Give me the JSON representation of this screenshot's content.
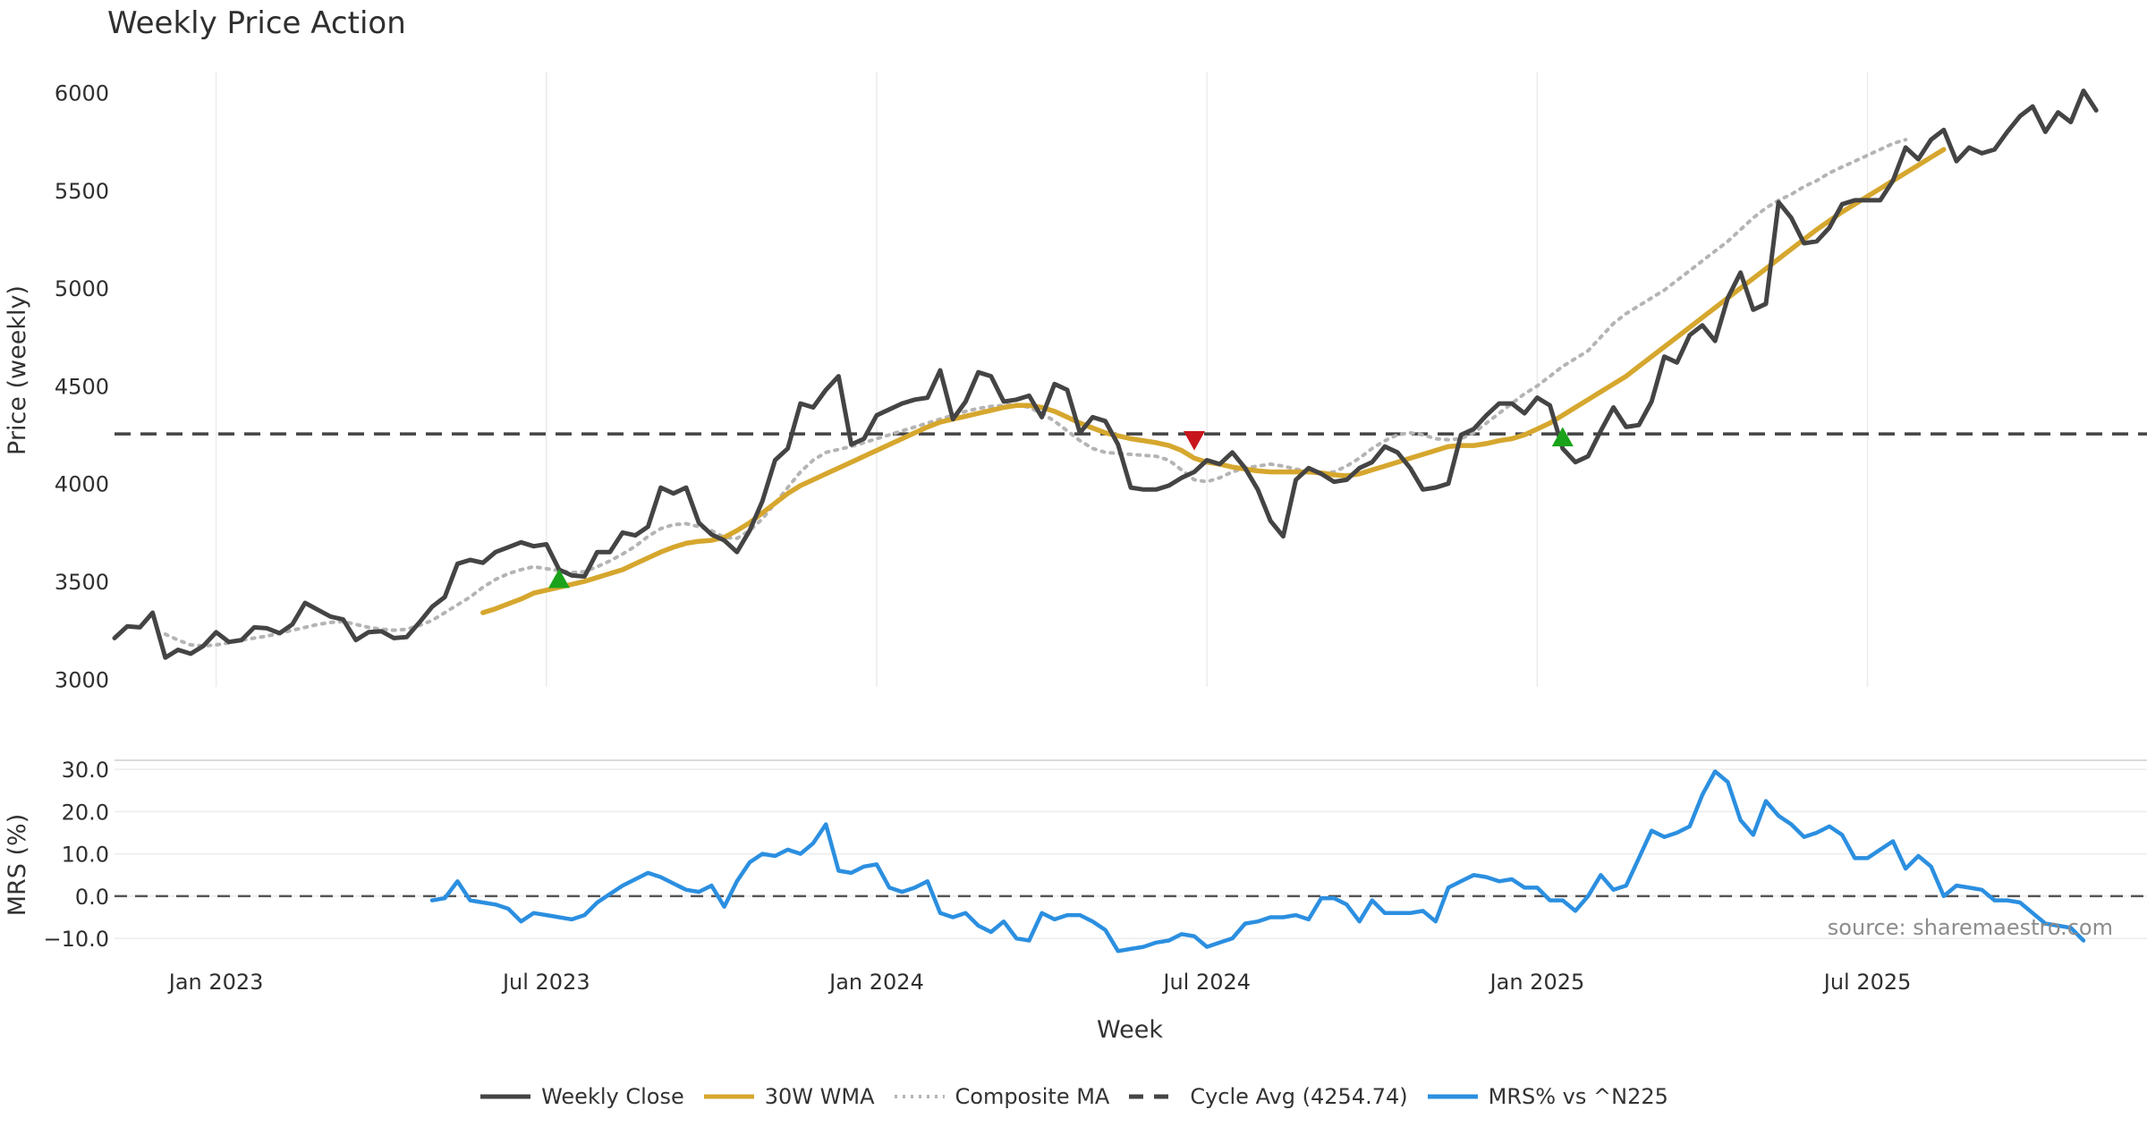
{
  "chart_data": {
    "type": "line",
    "title": "Weekly Price Action",
    "xlabel": "Week",
    "x_ticks": [
      "Jan 2023",
      "Jul 2023",
      "Jan 2024",
      "Jul 2024",
      "Jan 2025",
      "Jul 2025"
    ],
    "x_tick_weeks": [
      8,
      34,
      60,
      86,
      112,
      138
    ],
    "grid": true,
    "source": "source: sharemaestro.com",
    "price_panel": {
      "ylabel": "Price (weekly)",
      "ylim": [
        2960,
        6200
      ],
      "y_ticks": [
        3000,
        3500,
        4000,
        4500,
        5000,
        5500,
        6000
      ],
      "cycle_average": 4254.74,
      "series": [
        {
          "name": "Weekly Close",
          "color": "#444444",
          "start_week": 0,
          "values": [
            3210,
            3270,
            3265,
            3340,
            3110,
            3150,
            3130,
            3170,
            3240,
            3190,
            3200,
            3265,
            3260,
            3235,
            3280,
            3390,
            3355,
            3320,
            3305,
            3200,
            3240,
            3245,
            3210,
            3215,
            3290,
            3370,
            3420,
            3590,
            3610,
            3595,
            3650,
            3675,
            3700,
            3680,
            3690,
            3560,
            3530,
            3525,
            3650,
            3650,
            3750,
            3735,
            3780,
            3980,
            3950,
            3980,
            3800,
            3740,
            3710,
            3650,
            3760,
            3910,
            4120,
            4180,
            4410,
            4390,
            4480,
            4550,
            4200,
            4230,
            4350,
            4380,
            4410,
            4430,
            4440,
            4580,
            4330,
            4420,
            4570,
            4550,
            4420,
            4430,
            4450,
            4340,
            4510,
            4480,
            4260,
            4340,
            4320,
            4200,
            3980,
            3970,
            3970,
            3990,
            4030,
            4060,
            4120,
            4100,
            4160,
            4080,
            3970,
            3810,
            3730,
            4020,
            4080,
            4050,
            4010,
            4020,
            4080,
            4110,
            4190,
            4160,
            4080,
            3970,
            3980,
            4000,
            4250,
            4280,
            4350,
            4410,
            4410,
            4360,
            4440,
            4400,
            4180,
            4110,
            4140,
            4270,
            4390,
            4290,
            4300,
            4420,
            4650,
            4620,
            4760,
            4810,
            4730,
            4950,
            5080,
            4890,
            4920,
            5440,
            5360,
            5230,
            5240,
            5310,
            5430,
            5450,
            5450,
            5450,
            5550,
            5720,
            5660,
            5760,
            5810,
            5650,
            5720,
            5690,
            5710,
            5800,
            5880,
            5930,
            5800,
            5900,
            5850,
            6010,
            5910
          ]
        },
        {
          "name": "30W WMA",
          "color": "#d6a72e",
          "start_week": 29,
          "values": [
            3340,
            3360,
            3385,
            3410,
            3440,
            3455,
            3470,
            3485,
            3500,
            3520,
            3540,
            3560,
            3590,
            3620,
            3650,
            3675,
            3695,
            3705,
            3710,
            3725,
            3760,
            3800,
            3850,
            3900,
            3950,
            3990,
            4020,
            4050,
            4080,
            4110,
            4140,
            4170,
            4200,
            4230,
            4260,
            4290,
            4315,
            4330,
            4345,
            4360,
            4375,
            4390,
            4400,
            4400,
            4390,
            4370,
            4340,
            4310,
            4285,
            4260,
            4245,
            4230,
            4220,
            4210,
            4195,
            4170,
            4130,
            4110,
            4100,
            4085,
            4075,
            4065,
            4060,
            4060,
            4060,
            4060,
            4055,
            4045,
            4040,
            4050,
            4070,
            4090,
            4110,
            4130,
            4150,
            4170,
            4190,
            4195,
            4195,
            4205,
            4220,
            4230,
            4250,
            4280,
            4310,
            4350,
            4390,
            4430,
            4470,
            4510,
            4550,
            4600,
            4650,
            4700,
            4750,
            4800,
            4850,
            4900,
            4950,
            5000,
            5050,
            5100,
            5150,
            5200,
            5250,
            5300,
            5345,
            5390,
            5430,
            5470,
            5510,
            5550,
            5590,
            5630,
            5670,
            5710
          ]
        },
        {
          "name": "Composite MA",
          "color": "#b4b4b4",
          "start_week": 4,
          "values": [
            3230,
            3200,
            3175,
            3170,
            3175,
            3185,
            3200,
            3210,
            3220,
            3235,
            3250,
            3265,
            3280,
            3290,
            3295,
            3280,
            3265,
            3255,
            3250,
            3255,
            3275,
            3300,
            3340,
            3380,
            3420,
            3470,
            3510,
            3540,
            3560,
            3575,
            3565,
            3555,
            3545,
            3550,
            3575,
            3605,
            3640,
            3680,
            3730,
            3770,
            3790,
            3795,
            3780,
            3760,
            3725,
            3720,
            3760,
            3820,
            3900,
            3980,
            4060,
            4120,
            4160,
            4175,
            4190,
            4210,
            4230,
            4250,
            4270,
            4290,
            4310,
            4330,
            4350,
            4370,
            4385,
            4395,
            4400,
            4405,
            4390,
            4360,
            4320,
            4270,
            4220,
            4180,
            4160,
            4155,
            4150,
            4145,
            4140,
            4120,
            4070,
            4020,
            4010,
            4030,
            4060,
            4080,
            4090,
            4100,
            4090,
            4075,
            4060,
            4050,
            4060,
            4090,
            4130,
            4180,
            4220,
            4250,
            4260,
            4250,
            4230,
            4225,
            4230,
            4260,
            4310,
            4360,
            4410,
            4460,
            4500,
            4550,
            4600,
            4640,
            4680,
            4750,
            4820,
            4870,
            4910,
            4950,
            4990,
            5040,
            5090,
            5140,
            5190,
            5240,
            5300,
            5360,
            5410,
            5450,
            5480,
            5520,
            5550,
            5590,
            5620,
            5650,
            5680,
            5710,
            5740,
            5760
          ]
        }
      ],
      "markers": [
        {
          "type": "buy",
          "week": 35,
          "value": 3510,
          "color": "#1aa31a"
        },
        {
          "type": "sell",
          "week": 85,
          "value": 4225,
          "color": "#c8161d"
        },
        {
          "type": "buy",
          "week": 114,
          "value": 4235,
          "color": "#1aa31a"
        }
      ]
    },
    "mrs_panel": {
      "ylabel": "MRS (%)",
      "ylim": [
        -14,
        33
      ],
      "y_ticks": [
        30,
        20,
        10,
        0,
        -10
      ],
      "y_tick_labels": [
        "30.0",
        "20.0",
        "10.0",
        "0.0",
        "−10.0"
      ],
      "series": [
        {
          "name": "MRS% vs ^N225",
          "color": "#2b8fe0",
          "start_week": 25,
          "values": [
            -1,
            -0.5,
            3.5,
            -1,
            -1.5,
            -2,
            -3,
            -6,
            -4,
            -4.5,
            -5,
            -5.5,
            -4.5,
            -1.5,
            0.5,
            2.5,
            4,
            5.5,
            4.5,
            3,
            1.5,
            1,
            2.5,
            -2.5,
            3.5,
            8,
            10,
            9.5,
            11,
            10,
            12.5,
            17,
            6,
            5.5,
            7,
            7.5,
            2,
            1,
            2,
            3.5,
            -4,
            -5,
            -4,
            -7,
            -8.5,
            -6,
            -10,
            -10.5,
            -4,
            -5.5,
            -4.5,
            -4.5,
            -6,
            -8,
            -13,
            -12.5,
            -12,
            -11,
            -10.5,
            -9,
            -9.5,
            -12,
            -11,
            -10,
            -6.5,
            -6,
            -5,
            -5,
            -4.5,
            -5.5,
            -0.5,
            -0.5,
            -2,
            -6,
            -1,
            -4,
            -4,
            -4,
            -3.5,
            -6,
            2,
            3.5,
            5,
            4.5,
            3.5,
            4,
            2,
            2,
            -1,
            -1,
            -3.5,
            0,
            5,
            1.5,
            2.5,
            9,
            15.5,
            14,
            15,
            16.5,
            24,
            29.5,
            27,
            18,
            14.5,
            22.5,
            19,
            17,
            14,
            15,
            16.5,
            14.5,
            9,
            9,
            11,
            13,
            6.5,
            9.5,
            7,
            0,
            2.5,
            2,
            1.5,
            -1,
            -1,
            -1.5,
            -4,
            -6.5,
            -7,
            -7.5,
            -10.5
          ]
        }
      ],
      "zero_line": 0
    }
  },
  "legend": {
    "items": [
      {
        "label": "Weekly Close",
        "color": "#444444",
        "style": "solid"
      },
      {
        "label": "30W WMA",
        "color": "#d6a72e",
        "style": "solid"
      },
      {
        "label": "Composite MA",
        "color": "#b4b4b4",
        "style": "dotted"
      },
      {
        "label": "Cycle Avg (4254.74)",
        "color": "#444444",
        "style": "dashed"
      },
      {
        "label": "MRS% vs ^N225",
        "color": "#2b8fe0",
        "style": "solid"
      }
    ]
  }
}
